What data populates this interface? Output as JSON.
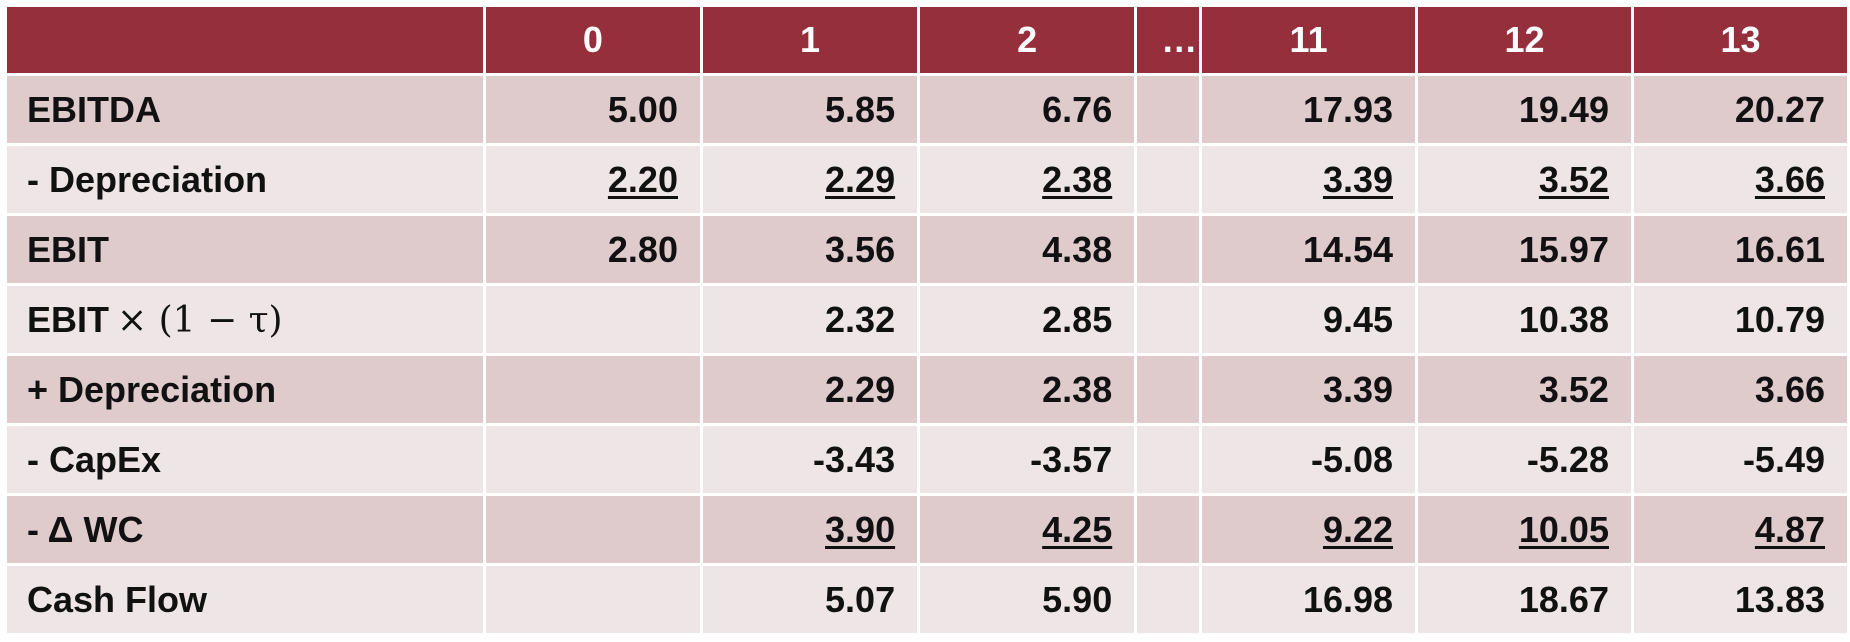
{
  "header": [
    "",
    "0",
    "1",
    "2",
    "…",
    "11",
    "12",
    "13"
  ],
  "rows": [
    {
      "label": "EBITDA",
      "label_math": "",
      "cells": [
        "5.00",
        "5.85",
        "6.76",
        "",
        "17.93",
        "19.49",
        "20.27"
      ],
      "underline": false
    },
    {
      "label": "- Depreciation",
      "label_math": "",
      "cells": [
        "2.20",
        "2.29",
        "2.38",
        "",
        "3.39",
        "3.52",
        "3.66"
      ],
      "underline": true
    },
    {
      "label": "EBIT",
      "label_math": "",
      "cells": [
        "2.80",
        "3.56",
        "4.38",
        "",
        "14.54",
        "15.97",
        "16.61"
      ],
      "underline": false
    },
    {
      "label": "EBIT",
      "label_math": "× (1 − τ)",
      "cells": [
        "",
        "2.32",
        "2.85",
        "",
        "9.45",
        "10.38",
        "10.79"
      ],
      "underline": false
    },
    {
      "label": "+ Depreciation",
      "label_math": "",
      "cells": [
        "",
        "2.29",
        "2.38",
        "",
        "3.39",
        "3.52",
        "3.66"
      ],
      "underline": false
    },
    {
      "label": "- CapEx",
      "label_math": "",
      "cells": [
        "",
        "-3.43",
        "-3.57",
        "",
        "-5.08",
        "-5.28",
        "-5.49"
      ],
      "underline": false
    },
    {
      "label": "- Δ WC",
      "label_math": "",
      "cells": [
        "",
        "3.90",
        "4.25",
        "",
        "9.22",
        "10.05",
        "4.87"
      ],
      "underline": true
    },
    {
      "label": "Cash Flow",
      "label_math": "",
      "cells": [
        "",
        "5.07",
        "5.90",
        "",
        "16.98",
        "18.67",
        "13.83"
      ],
      "underline": false
    }
  ]
}
